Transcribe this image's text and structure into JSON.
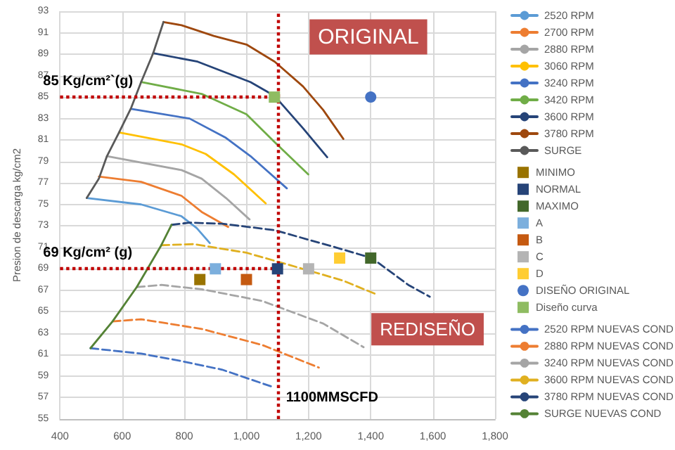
{
  "chart_data": {
    "type": "line",
    "ylabel": "Presion de descarga kg/cm2",
    "xlim": [
      400,
      1800
    ],
    "xticks": [
      400,
      600,
      800,
      {
        "value": 1000,
        "label": "1,000"
      },
      {
        "value": 1200,
        "label": "1,200"
      },
      {
        "value": 1400,
        "label": "1,400"
      },
      {
        "value": 1600,
        "label": "1,600"
      },
      {
        "value": 1800,
        "label": "1,800"
      }
    ],
    "ylim": [
      55,
      93
    ],
    "yticks": [
      55,
      57,
      59,
      61,
      63,
      65,
      67,
      69,
      71,
      73,
      75,
      77,
      79,
      81,
      83,
      85,
      87,
      89,
      91,
      93
    ],
    "grid": true,
    "legend": "right",
    "annotations": [
      "ORIGINAL",
      "REDISEÑO"
    ],
    "ref_lines": [
      {
        "axis": "y",
        "value": 85,
        "label": "85 Kg/cm²`(g)",
        "color": "#c00000",
        "line_style": "dotted"
      },
      {
        "axis": "y",
        "value": 69,
        "label": "69 Kg/cm² (g)",
        "color": "#c00000",
        "line_style": "dotted"
      },
      {
        "axis": "x",
        "value": 1100,
        "label": "1100MMSCFD",
        "color": "#c00000",
        "line_style": "dotted"
      }
    ],
    "series": [
      {
        "name": "2520 RPM",
        "color": "#5b9bd5",
        "line_style": "solid",
        "marker": "none",
        "x": [
          486,
          661,
          791,
          840,
          882
        ],
        "values": [
          75.6,
          75,
          73.9,
          72.8,
          71.4
        ]
      },
      {
        "name": "2700 RPM",
        "color": "#ed7d31",
        "line_style": "solid",
        "marker": "none",
        "x": [
          525,
          661,
          791,
          856,
          941
        ],
        "values": [
          77.6,
          77.1,
          75.8,
          74.3,
          72.9
        ]
      },
      {
        "name": "2880 RPM",
        "color": "#a5a5a5",
        "line_style": "solid",
        "marker": "none",
        "x": [
          551,
          791,
          856,
          934,
          1010
        ],
        "values": [
          79.5,
          78.2,
          77.4,
          75.6,
          73.6
        ]
      },
      {
        "name": "3060 RPM",
        "color": "#ffc000",
        "line_style": "solid",
        "marker": "none",
        "x": [
          590,
          791,
          869,
          960,
          1062
        ],
        "values": [
          81.7,
          80.6,
          79.7,
          77.8,
          75.1
        ]
      },
      {
        "name": "3240 RPM",
        "color": "#4472c4",
        "line_style": "solid",
        "marker": "none",
        "x": [
          629,
          817,
          934,
          1013,
          1130
        ],
        "values": [
          83.9,
          83,
          81.2,
          79.5,
          76.5
        ]
      },
      {
        "name": "3420 RPM",
        "color": "#70ad47",
        "line_style": "solid",
        "marker": "none",
        "x": [
          661,
          856,
          1000,
          1091,
          1199
        ],
        "values": [
          86.4,
          85.3,
          83.4,
          80.8,
          77.8
        ]
      },
      {
        "name": "3600 RPM",
        "color": "#264478",
        "line_style": "solid",
        "marker": "none",
        "x": [
          700,
          843,
          1013,
          1091,
          1182,
          1260
        ],
        "values": [
          89.1,
          88.3,
          86.4,
          85.1,
          82.1,
          79.4
        ]
      },
      {
        "name": "3780 RPM",
        "color": "#9e480e",
        "line_style": "solid",
        "marker": "none",
        "x": [
          733,
          791,
          895,
          1000,
          1091,
          1182,
          1247,
          1312
        ],
        "values": [
          92,
          91.7,
          90.7,
          89.9,
          88.3,
          86,
          83.8,
          81.1
        ]
      },
      {
        "name": "SURGE",
        "color": "#595959",
        "line_style": "solid",
        "marker": "none",
        "x": [
          486,
          525,
          551,
          590,
          629,
          661,
          700,
          733
        ],
        "values": [
          75.6,
          77.4,
          79.5,
          81.7,
          84,
          86.4,
          89.1,
          92
        ]
      },
      {
        "name": "MINIMO",
        "type": "scatter",
        "color": "#997300",
        "marker": "square",
        "x": [
          850
        ],
        "values": [
          68
        ]
      },
      {
        "name": "NORMAL",
        "type": "scatter",
        "color": "#264478",
        "marker": "square",
        "x": [
          1100
        ],
        "values": [
          69
        ]
      },
      {
        "name": "MAXIMO",
        "type": "scatter",
        "color": "#43682b",
        "marker": "square",
        "x": [
          1400
        ],
        "values": [
          70
        ]
      },
      {
        "name": "A",
        "type": "scatter",
        "color": "#7cafdd",
        "marker": "square",
        "x": [
          900
        ],
        "values": [
          69
        ]
      },
      {
        "name": "B",
        "type": "scatter",
        "color": "#c55a11",
        "marker": "square",
        "x": [
          1000
        ],
        "values": [
          68
        ]
      },
      {
        "name": "C",
        "type": "scatter",
        "color": "#b4b4b4",
        "marker": "square",
        "x": [
          1200
        ],
        "values": [
          69
        ]
      },
      {
        "name": "D",
        "type": "scatter",
        "color": "#ffcd33",
        "marker": "square",
        "x": [
          1300
        ],
        "values": [
          70
        ]
      },
      {
        "name": "DISEÑO ORIGINAL",
        "type": "scatter",
        "color": "#4472c4",
        "marker": "circle",
        "x": [
          1400
        ],
        "values": [
          85
        ]
      },
      {
        "name": "Diseño curva",
        "type": "scatter",
        "color": "#8fbc62",
        "marker": "square",
        "x": [
          1090
        ],
        "values": [
          85
        ]
      },
      {
        "name": "2520 RPM NUEVAS COND",
        "color": "#4472c4",
        "line_style": "dashed",
        "marker": "none",
        "x": [
          498,
          661,
          791,
          922,
          1084
        ],
        "values": [
          61.6,
          61.1,
          60.4,
          59.6,
          58
        ]
      },
      {
        "name": "2880 RPM NUEVAS COND",
        "color": "#ed7d31",
        "line_style": "dashed",
        "marker": "none",
        "x": [
          569,
          661,
          856,
          1051,
          1233
        ],
        "values": [
          64.1,
          64.3,
          63.4,
          61.9,
          59.8
        ]
      },
      {
        "name": "3240 RPM NUEVAS COND",
        "color": "#a5a5a5",
        "line_style": "dashed",
        "marker": "none",
        "x": [
          647,
          726,
          856,
          1051,
          1247,
          1377
        ],
        "values": [
          67.3,
          67.5,
          67.1,
          66,
          63.9,
          61.7
        ]
      },
      {
        "name": "3600 RPM NUEVAS COND",
        "color": "#e0b020",
        "line_style": "dashed",
        "marker": "none",
        "x": [
          726,
          830,
          1000,
          1181,
          1311,
          1420
        ],
        "values": [
          71.2,
          71.3,
          70.5,
          69,
          67.9,
          66.6
        ]
      },
      {
        "name": "3780 RPM NUEVAS COND",
        "color": "#264478",
        "line_style": "dashed",
        "marker": "none",
        "x": [
          759,
          817,
          922,
          1091,
          1287,
          1404,
          1521,
          1590
        ],
        "values": [
          73.1,
          73.3,
          73.2,
          72.6,
          71,
          70,
          67.5,
          66.4
        ]
      },
      {
        "name": "SURGE NUEVAS COND",
        "color": "#548235",
        "line_style": "solid",
        "marker": "none",
        "x": [
          498,
          569,
          647,
          726,
          759
        ],
        "values": [
          61.6,
          64.1,
          67.3,
          71.2,
          73.1
        ]
      }
    ]
  }
}
